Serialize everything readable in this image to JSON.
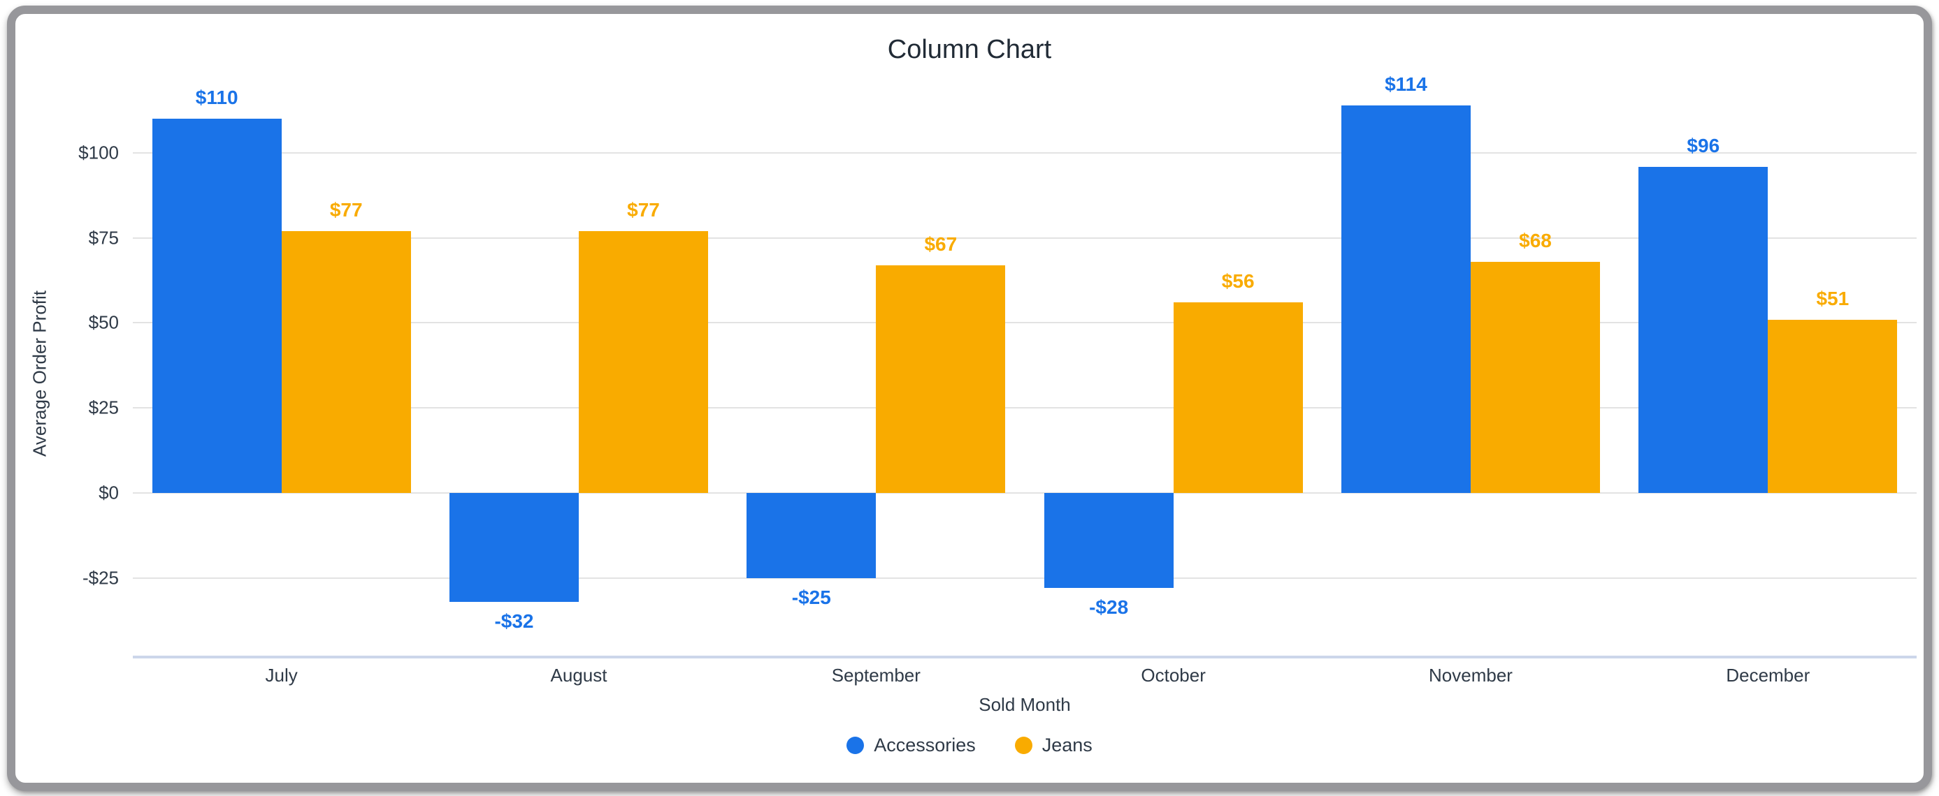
{
  "window": {
    "frame_color": "#97979b",
    "background_color": "#ffffff"
  },
  "chart_data": {
    "type": "bar",
    "title": "Column Chart",
    "xlabel": "Sold Month",
    "ylabel": "Average Order Profit",
    "categories": [
      "July",
      "August",
      "September",
      "October",
      "November",
      "December"
    ],
    "series": [
      {
        "name": "Accessories",
        "color": "#1a73e8",
        "values": [
          110,
          -32,
          -25,
          -28,
          114,
          96
        ],
        "data_labels": [
          "$110",
          "-$32",
          "-$25",
          "-$28",
          "$114",
          "$96"
        ]
      },
      {
        "name": "Jeans",
        "color": "#f9ab00",
        "values": [
          77,
          77,
          67,
          56,
          68,
          51
        ],
        "data_labels": [
          "$77",
          "$77",
          "$67",
          "$56",
          "$68",
          "$51"
        ]
      }
    ],
    "y_axis": {
      "ticks": [
        {
          "label": "$100",
          "value": 100
        },
        {
          "label": "$75",
          "value": 75
        },
        {
          "label": "$50",
          "value": 50
        },
        {
          "label": "$25",
          "value": 25
        },
        {
          "label": "$0",
          "value": 0
        },
        {
          "label": "-$25",
          "value": -25
        }
      ],
      "range": [
        -48.3,
        118.3
      ]
    },
    "grid": true,
    "gridline_color": "#e3e3e3",
    "baseline_color": "#ccd6ea",
    "legend_position": "bottom"
  }
}
